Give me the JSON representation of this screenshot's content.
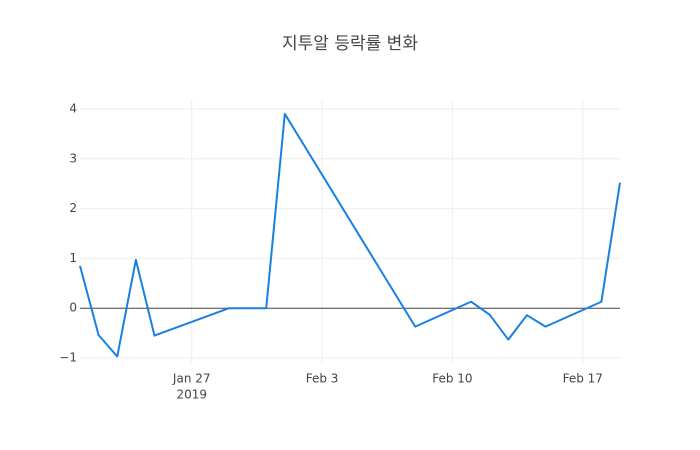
{
  "chart_data": {
    "type": "line",
    "title": "지투알 등락률 변화",
    "x": [
      "2019-01-21",
      "2019-01-22",
      "2019-01-23",
      "2019-01-24",
      "2019-01-25",
      "2019-01-29",
      "2019-01-31",
      "2019-02-01",
      "2019-02-08",
      "2019-02-11",
      "2019-02-12",
      "2019-02-13",
      "2019-02-14",
      "2019-02-15",
      "2019-02-18",
      "2019-02-19"
    ],
    "series": [
      {
        "color": "#1a80e0",
        "values": [
          0.85,
          -0.54,
          -0.97,
          0.97,
          -0.55,
          0,
          0,
          3.9,
          -0.37,
          0.13,
          -0.13,
          -0.63,
          -0.14,
          -0.37,
          0.13,
          2.52
        ]
      }
    ],
    "xlim": [
      "2019-01-21",
      "2019-02-19"
    ],
    "xticks": [
      {
        "value": "2019-01-27",
        "label": "Jan 27"
      },
      {
        "value": "2019-02-03",
        "label": "Feb 3"
      },
      {
        "value": "2019-02-10",
        "label": "Feb 10"
      },
      {
        "value": "2019-02-17",
        "label": "Feb 17"
      }
    ],
    "x_year_label": "2019",
    "ylim": [
      -1.1,
      4.2
    ],
    "yticks": [
      {
        "value": -1,
        "label": "−1"
      },
      0,
      1,
      2,
      3,
      4
    ],
    "grid": true,
    "zeroline": true
  }
}
